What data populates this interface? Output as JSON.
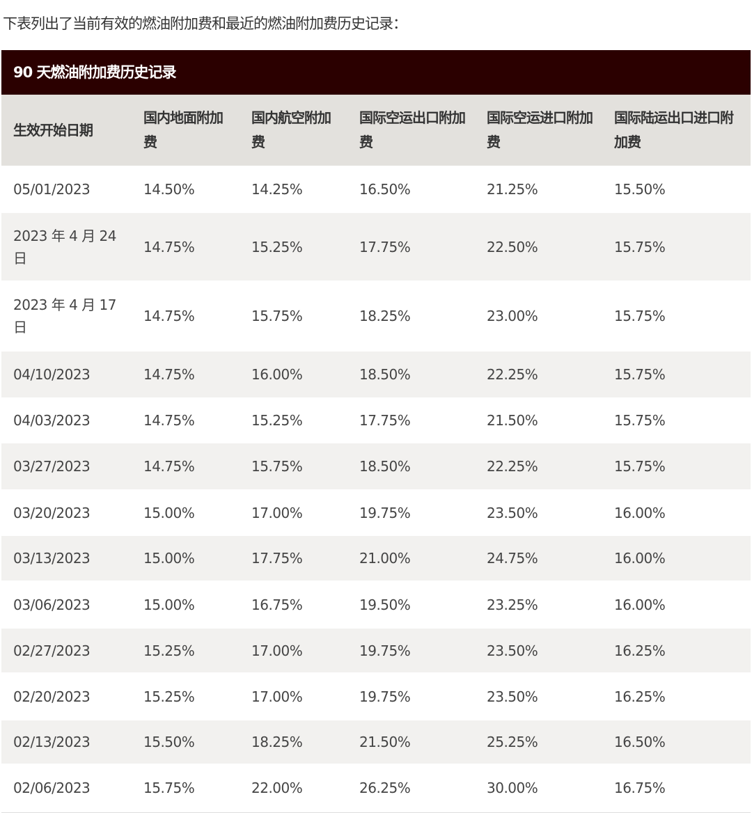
{
  "intro_text": "下表列出了当前有效的燃油附加费和最近的燃油附加费历史记录：",
  "table": {
    "caption": "90 天燃油附加费历史记录",
    "headers": [
      "生效开始日期",
      "国内地面附加费",
      "国内航空附加费",
      "国际空运出口附加费",
      "国际空运进口附加费",
      "国际陆运出口进口附加费"
    ],
    "rows": [
      [
        "05/01/2023",
        "14.50%",
        "14.25%",
        "16.50%",
        "21.25%",
        "15.50%"
      ],
      [
        "2023 年 4 月 24 日",
        "14.75%",
        "15.25%",
        "17.75%",
        "22.50%",
        "15.75%"
      ],
      [
        "2023 年 4 月 17 日",
        "14.75%",
        "15.75%",
        "18.25%",
        "23.00%",
        "15.75%"
      ],
      [
        "04/10/2023",
        "14.75%",
        "16.00%",
        "18.50%",
        "22.25%",
        "15.75%"
      ],
      [
        "04/03/2023",
        "14.75%",
        "15.25%",
        "17.75%",
        "21.50%",
        "15.75%"
      ],
      [
        "03/27/2023",
        "14.75%",
        "15.75%",
        "18.50%",
        "22.25%",
        "15.75%"
      ],
      [
        "03/20/2023",
        "15.00%",
        "17.00%",
        "19.75%",
        "23.50%",
        "16.00%"
      ],
      [
        "03/13/2023",
        "15.00%",
        "17.75%",
        "21.00%",
        "24.75%",
        "16.00%"
      ],
      [
        "03/06/2023",
        "15.00%",
        "16.75%",
        "19.50%",
        "23.25%",
        "16.00%"
      ],
      [
        "02/27/2023",
        "15.25%",
        "17.00%",
        "19.75%",
        "23.50%",
        "16.25%"
      ],
      [
        "02/20/2023",
        "15.25%",
        "17.00%",
        "19.75%",
        "23.50%",
        "16.25%"
      ],
      [
        "02/13/2023",
        "15.50%",
        "18.25%",
        "21.50%",
        "25.25%",
        "16.50%"
      ],
      [
        "02/06/2023",
        "15.75%",
        "22.00%",
        "26.25%",
        "30.00%",
        "16.75%"
      ]
    ]
  }
}
